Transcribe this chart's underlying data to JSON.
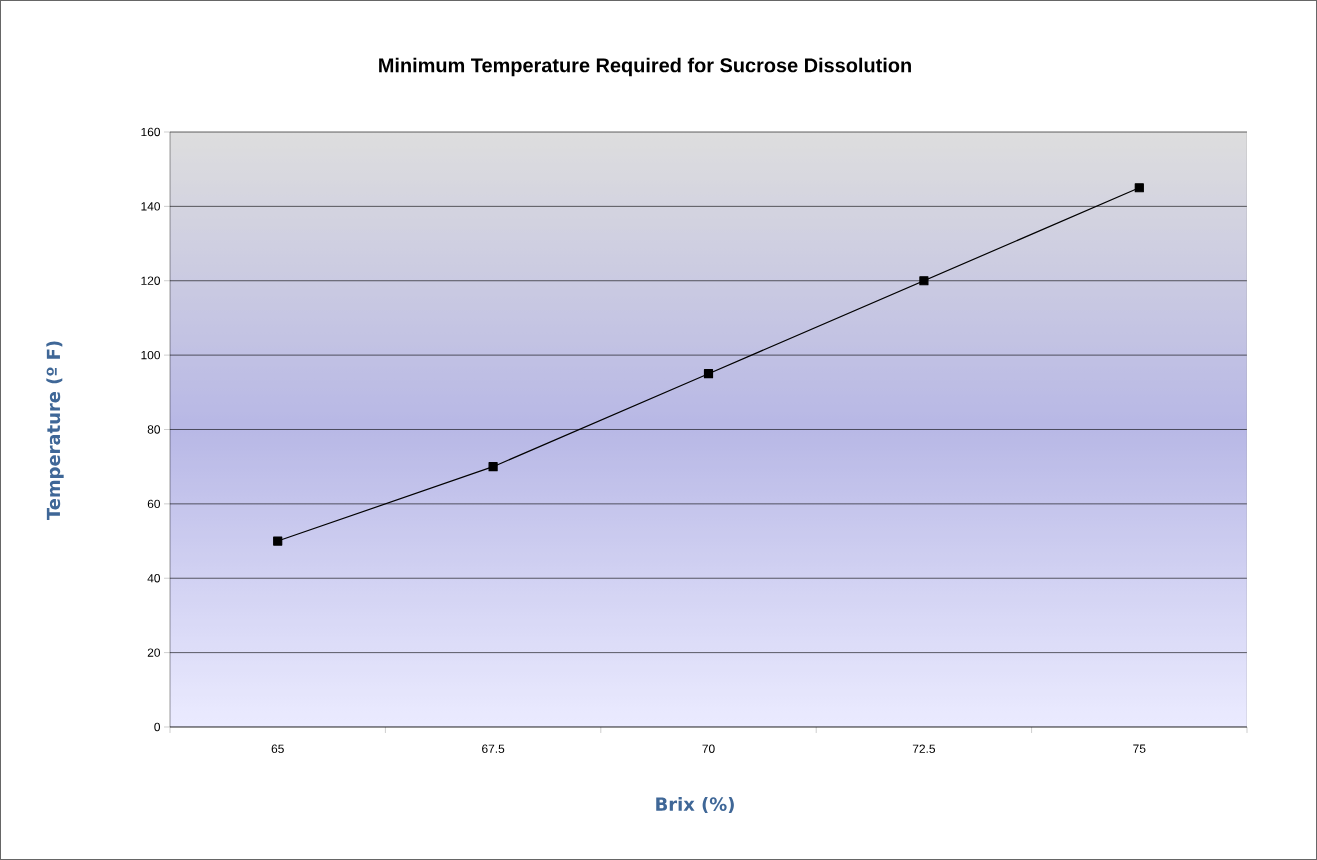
{
  "chart_data": {
    "type": "line",
    "title": "Minimum Temperature Required for Sucrose Dissolution",
    "xlabel": "Brix (%)",
    "ylabel": "Temperature (º F)",
    "categories": [
      "65",
      "67.5",
      "70",
      "72.5",
      "75"
    ],
    "series": [
      {
        "color": "#000000",
        "values": [
          50,
          70,
          95,
          120,
          145
        ]
      }
    ],
    "ylim": [
      0,
      160
    ],
    "yticks": [
      0,
      20,
      40,
      60,
      80,
      100,
      120,
      140,
      160
    ],
    "grid": "y",
    "marker": "square",
    "line_style": "solid"
  }
}
